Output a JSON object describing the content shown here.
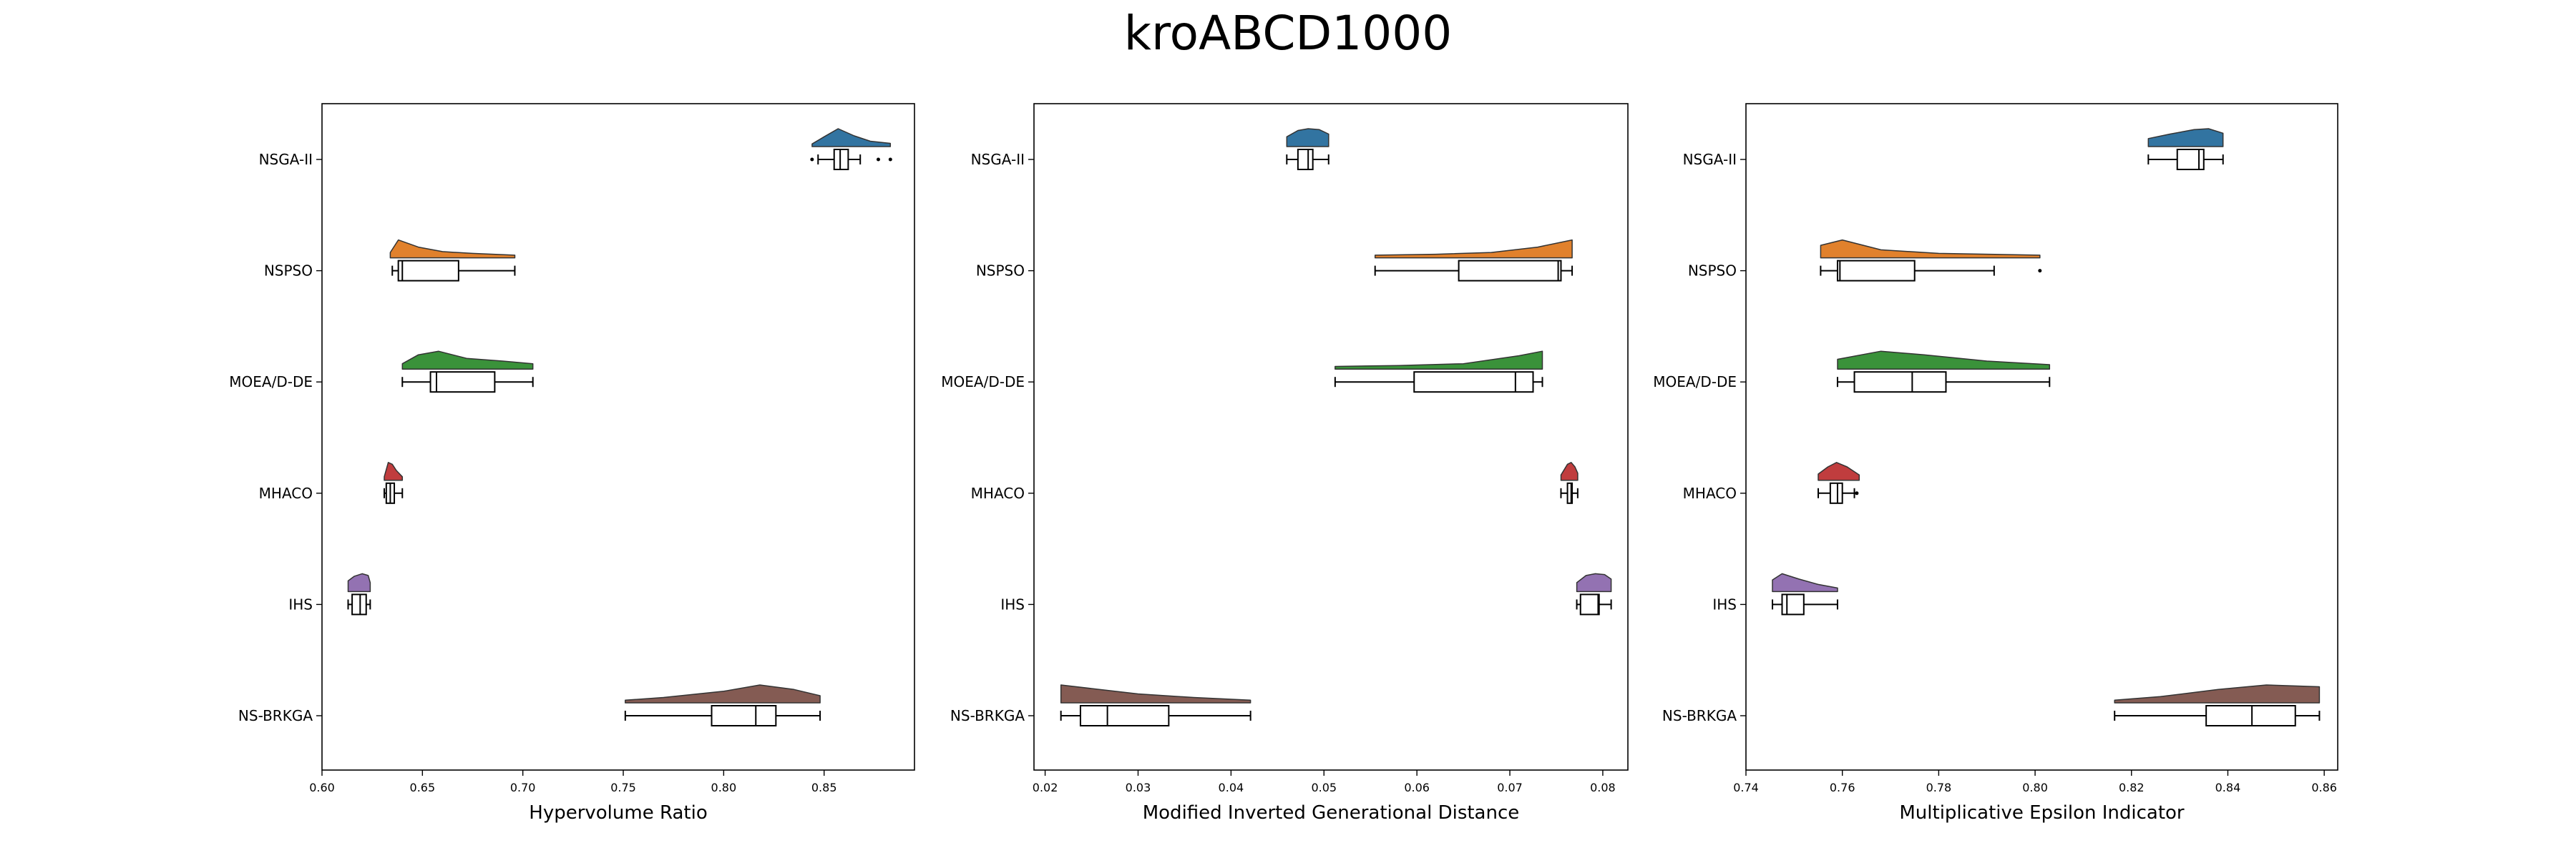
{
  "figure_title": "kroABCD1000",
  "series_colors": {
    "NSGA-II": "#3274a1",
    "NSPSO": "#e1812c",
    "MOEA/D-DE": "#3a923a",
    "MHACO": "#c03d3e",
    "IHS": "#9372b2",
    "NS-BRKGA": "#845b53"
  },
  "chart_data": [
    {
      "type": "raincloud",
      "xlabel": "Hypervolume Ratio",
      "xlim": [
        0.6,
        0.895
      ],
      "xticks": [
        0.6,
        0.65,
        0.7,
        0.75,
        0.8,
        0.85
      ],
      "xtick_labels": [
        "0.60",
        "0.65",
        "0.70",
        "0.75",
        "0.80",
        "0.85"
      ],
      "categories": [
        "NSGA-II",
        "NSPSO",
        "MOEA/D-DE",
        "MHACO",
        "IHS",
        "NS-BRKGA"
      ],
      "series": [
        {
          "name": "NSGA-II",
          "whisker_low": 0.847,
          "q1": 0.855,
          "median": 0.858,
          "q3": 0.862,
          "whisker_high": 0.868,
          "fliers": [
            0.844,
            0.877,
            0.883
          ],
          "density": [
            [
              0.844,
              0.15
            ],
            [
              0.85,
              0.55
            ],
            [
              0.857,
              1.0
            ],
            [
              0.865,
              0.6
            ],
            [
              0.873,
              0.3
            ],
            [
              0.883,
              0.18
            ]
          ]
        },
        {
          "name": "NSPSO",
          "whisker_low": 0.635,
          "q1": 0.638,
          "median": 0.64,
          "q3": 0.668,
          "whisker_high": 0.696,
          "fliers": [],
          "density": [
            [
              0.634,
              0.3
            ],
            [
              0.638,
              1.0
            ],
            [
              0.648,
              0.6
            ],
            [
              0.66,
              0.35
            ],
            [
              0.675,
              0.25
            ],
            [
              0.696,
              0.15
            ]
          ]
        },
        {
          "name": "MOEA/D-DE",
          "whisker_low": 0.64,
          "q1": 0.654,
          "median": 0.657,
          "q3": 0.686,
          "whisker_high": 0.705,
          "fliers": [],
          "density": [
            [
              0.64,
              0.3
            ],
            [
              0.648,
              0.8
            ],
            [
              0.658,
              1.0
            ],
            [
              0.672,
              0.6
            ],
            [
              0.69,
              0.45
            ],
            [
              0.705,
              0.3
            ]
          ]
        },
        {
          "name": "MHACO",
          "whisker_low": 0.631,
          "q1": 0.632,
          "median": 0.634,
          "q3": 0.636,
          "whisker_high": 0.64,
          "fliers": [],
          "density": [
            [
              0.631,
              0.2
            ],
            [
              0.633,
              1.0
            ],
            [
              0.635,
              0.9
            ],
            [
              0.637,
              0.55
            ],
            [
              0.64,
              0.2
            ]
          ]
        },
        {
          "name": "IHS",
          "whisker_low": 0.613,
          "q1": 0.615,
          "median": 0.619,
          "q3": 0.622,
          "whisker_high": 0.624,
          "fliers": [],
          "density": [
            [
              0.613,
              0.6
            ],
            [
              0.616,
              0.85
            ],
            [
              0.62,
              1.0
            ],
            [
              0.623,
              0.9
            ],
            [
              0.624,
              0.5
            ]
          ]
        },
        {
          "name": "NS-BRKGA",
          "whisker_low": 0.751,
          "q1": 0.794,
          "median": 0.816,
          "q3": 0.826,
          "whisker_high": 0.848,
          "fliers": [],
          "density": [
            [
              0.751,
              0.15
            ],
            [
              0.77,
              0.3
            ],
            [
              0.8,
              0.65
            ],
            [
              0.818,
              1.0
            ],
            [
              0.835,
              0.75
            ],
            [
              0.848,
              0.4
            ]
          ]
        }
      ]
    },
    {
      "type": "raincloud",
      "xlabel": "Modified Inverted Generational Distance",
      "xlim": [
        0.0188,
        0.0827
      ],
      "xticks": [
        0.02,
        0.03,
        0.04,
        0.05,
        0.06,
        0.07,
        0.08
      ],
      "xtick_labels": [
        "0.02",
        "0.03",
        "0.04",
        "0.05",
        "0.06",
        "0.07",
        "0.08"
      ],
      "categories": [
        "NSGA-II",
        "NSPSO",
        "MOEA/D-DE",
        "MHACO",
        "IHS",
        "NS-BRKGA"
      ],
      "series": [
        {
          "name": "NSGA-II",
          "whisker_low": 0.046,
          "q1": 0.0472,
          "median": 0.0483,
          "q3": 0.0488,
          "whisker_high": 0.0505,
          "fliers": [],
          "density": [
            [
              0.046,
              0.55
            ],
            [
              0.0472,
              0.9
            ],
            [
              0.0483,
              1.0
            ],
            [
              0.0495,
              0.95
            ],
            [
              0.0505,
              0.7
            ]
          ]
        },
        {
          "name": "NSPSO",
          "whisker_low": 0.0555,
          "q1": 0.0645,
          "median": 0.0752,
          "q3": 0.0755,
          "whisker_high": 0.0767,
          "fliers": [],
          "density": [
            [
              0.0555,
              0.15
            ],
            [
              0.062,
              0.2
            ],
            [
              0.068,
              0.3
            ],
            [
              0.073,
              0.6
            ],
            [
              0.0767,
              1.0
            ]
          ]
        },
        {
          "name": "MOEA/D-DE",
          "whisker_low": 0.0512,
          "q1": 0.0597,
          "median": 0.0706,
          "q3": 0.0725,
          "whisker_high": 0.0735,
          "fliers": [],
          "density": [
            [
              0.0512,
              0.15
            ],
            [
              0.058,
              0.2
            ],
            [
              0.065,
              0.3
            ],
            [
              0.071,
              0.75
            ],
            [
              0.0735,
              1.0
            ]
          ]
        },
        {
          "name": "MHACO",
          "whisker_low": 0.0755,
          "q1": 0.0762,
          "median": 0.0766,
          "q3": 0.0767,
          "whisker_high": 0.0773,
          "fliers": [],
          "density": [
            [
              0.0755,
              0.3
            ],
            [
              0.0762,
              0.9
            ],
            [
              0.0766,
              1.0
            ],
            [
              0.077,
              0.75
            ],
            [
              0.0773,
              0.4
            ]
          ]
        },
        {
          "name": "IHS",
          "whisker_low": 0.0772,
          "q1": 0.0776,
          "median": 0.0795,
          "q3": 0.0796,
          "whisker_high": 0.0809,
          "fliers": [],
          "density": [
            [
              0.0772,
              0.5
            ],
            [
              0.0782,
              0.9
            ],
            [
              0.0792,
              1.0
            ],
            [
              0.0802,
              0.95
            ],
            [
              0.0809,
              0.7
            ]
          ]
        },
        {
          "name": "NS-BRKGA",
          "whisker_low": 0.0217,
          "q1": 0.0238,
          "median": 0.0267,
          "q3": 0.0333,
          "whisker_high": 0.0421,
          "fliers": [],
          "density": [
            [
              0.0217,
              1.0
            ],
            [
              0.025,
              0.8
            ],
            [
              0.03,
              0.5
            ],
            [
              0.036,
              0.3
            ],
            [
              0.0421,
              0.15
            ]
          ]
        }
      ]
    },
    {
      "type": "raincloud",
      "xlabel": "Multiplicative Epsilon Indicator",
      "xlim": [
        0.74,
        0.8628
      ],
      "xticks": [
        0.74,
        0.76,
        0.78,
        0.8,
        0.82,
        0.84,
        0.86
      ],
      "xtick_labels": [
        "0.74",
        "0.76",
        "0.78",
        "0.80",
        "0.82",
        "0.84",
        "0.86"
      ],
      "categories": [
        "NSGA-II",
        "NSPSO",
        "MOEA/D-DE",
        "MHACO",
        "IHS",
        "NS-BRKGA"
      ],
      "series": [
        {
          "name": "NSGA-II",
          "whisker_low": 0.8235,
          "q1": 0.8295,
          "median": 0.834,
          "q3": 0.835,
          "whisker_high": 0.839,
          "fliers": [],
          "density": [
            [
              0.8235,
              0.45
            ],
            [
              0.828,
              0.7
            ],
            [
              0.833,
              0.95
            ],
            [
              0.836,
              1.0
            ],
            [
              0.839,
              0.75
            ]
          ]
        },
        {
          "name": "NSPSO",
          "whisker_low": 0.7555,
          "q1": 0.759,
          "median": 0.7595,
          "q3": 0.775,
          "whisker_high": 0.7915,
          "fliers": [
            0.801
          ],
          "density": [
            [
              0.7555,
              0.7
            ],
            [
              0.76,
              1.0
            ],
            [
              0.768,
              0.45
            ],
            [
              0.78,
              0.25
            ],
            [
              0.801,
              0.15
            ]
          ]
        },
        {
          "name": "MOEA/D-DE",
          "whisker_low": 0.759,
          "q1": 0.7625,
          "median": 0.7745,
          "q3": 0.7815,
          "whisker_high": 0.803,
          "fliers": [],
          "density": [
            [
              0.759,
              0.55
            ],
            [
              0.768,
              1.0
            ],
            [
              0.777,
              0.8
            ],
            [
              0.79,
              0.45
            ],
            [
              0.803,
              0.25
            ]
          ]
        },
        {
          "name": "MHACO",
          "whisker_low": 0.755,
          "q1": 0.7575,
          "median": 0.759,
          "q3": 0.76,
          "whisker_high": 0.7625,
          "fliers": [
            0.763
          ],
          "density": [
            [
              0.755,
              0.35
            ],
            [
              0.757,
              0.75
            ],
            [
              0.7588,
              1.0
            ],
            [
              0.761,
              0.75
            ],
            [
              0.7635,
              0.3
            ]
          ]
        },
        {
          "name": "IHS",
          "whisker_low": 0.7455,
          "q1": 0.7475,
          "median": 0.7485,
          "q3": 0.752,
          "whisker_high": 0.759,
          "fliers": [],
          "density": [
            [
              0.7455,
              0.65
            ],
            [
              0.7475,
              1.0
            ],
            [
              0.751,
              0.7
            ],
            [
              0.755,
              0.4
            ],
            [
              0.759,
              0.2
            ]
          ]
        },
        {
          "name": "NS-BRKGA",
          "whisker_low": 0.8165,
          "q1": 0.8355,
          "median": 0.845,
          "q3": 0.854,
          "whisker_high": 0.859,
          "fliers": [],
          "density": [
            [
              0.8165,
              0.15
            ],
            [
              0.826,
              0.35
            ],
            [
              0.838,
              0.75
            ],
            [
              0.848,
              1.0
            ],
            [
              0.859,
              0.9
            ]
          ]
        }
      ]
    }
  ]
}
